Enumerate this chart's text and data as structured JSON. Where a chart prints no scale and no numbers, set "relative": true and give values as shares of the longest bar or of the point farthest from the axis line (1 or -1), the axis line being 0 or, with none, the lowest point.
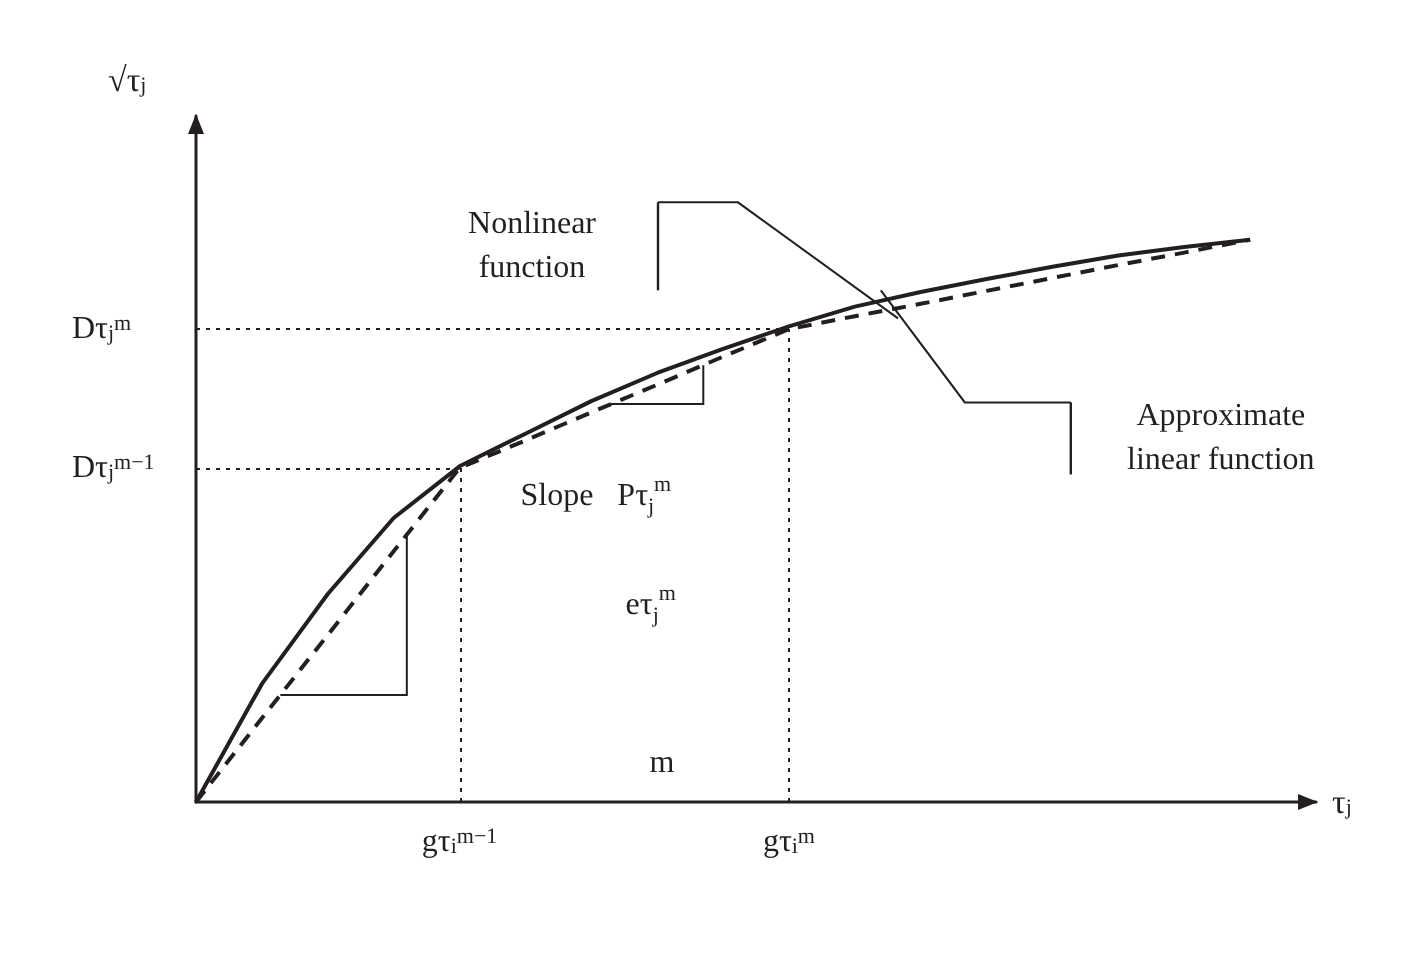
{
  "chart_data": {
    "type": "line",
    "relative": true,
    "xlabel": "τ$_{j}$",
    "ylabel": "√τ$_{j}$",
    "tick_labels": "x",
    "categories": [
      null,
      null,
      null,
      null,
      "gτ$_{i}$$^{m−1}$",
      null,
      null,
      null,
      null,
      "gτ$_{i}$$^{m}$",
      null,
      null,
      null,
      null,
      null,
      null,
      null,
      null
    ],
    "series": [
      {
        "color": "#231f20",
        "line_style": "solid",
        "values": [
          0,
          0.21,
          0.37,
          0.505,
          0.597,
          0.655,
          0.713,
          0.763,
          0.806,
          0.846,
          0.881,
          0.907,
          0.93,
          0.952,
          0.972,
          0.987,
          1,
          null
        ]
      },
      {
        "color": "#231f20",
        "line_style": "dashed",
        "values": [
          0,
          0.149,
          0.297,
          0.446,
          0.594,
          0.643,
          0.693,
          0.742,
          0.792,
          0.841,
          0.864,
          0.886,
          0.909,
          0.932,
          0.955,
          0.977,
          1,
          null
        ]
      }
    ],
    "marker": "none",
    "ref_lines": [
      {
        "axis": "y",
        "value": 0.594,
        "label": "Dτ$_{j}$$^{m−1}$",
        "line_style": "dotted"
      },
      {
        "axis": "y",
        "value": 0.841,
        "label": "Dτ$_{j}$$^{m}$",
        "line_style": "dotted"
      },
      {
        "axis": "x",
        "value": "gτ$_{i}$$^{m−1}$",
        "line_style": "dotted"
      },
      {
        "axis": "x",
        "value": "gτ$_{i}$$^{m}$",
        "line_style": "dotted"
      }
    ],
    "annotations": [
      "Nonlinear\nfunction",
      "Approximate\nlinear function",
      "Slope   Pτ$_{j}$$^{m}$",
      "eτ$_{j}$$^{m}$",
      "m"
    ]
  }
}
